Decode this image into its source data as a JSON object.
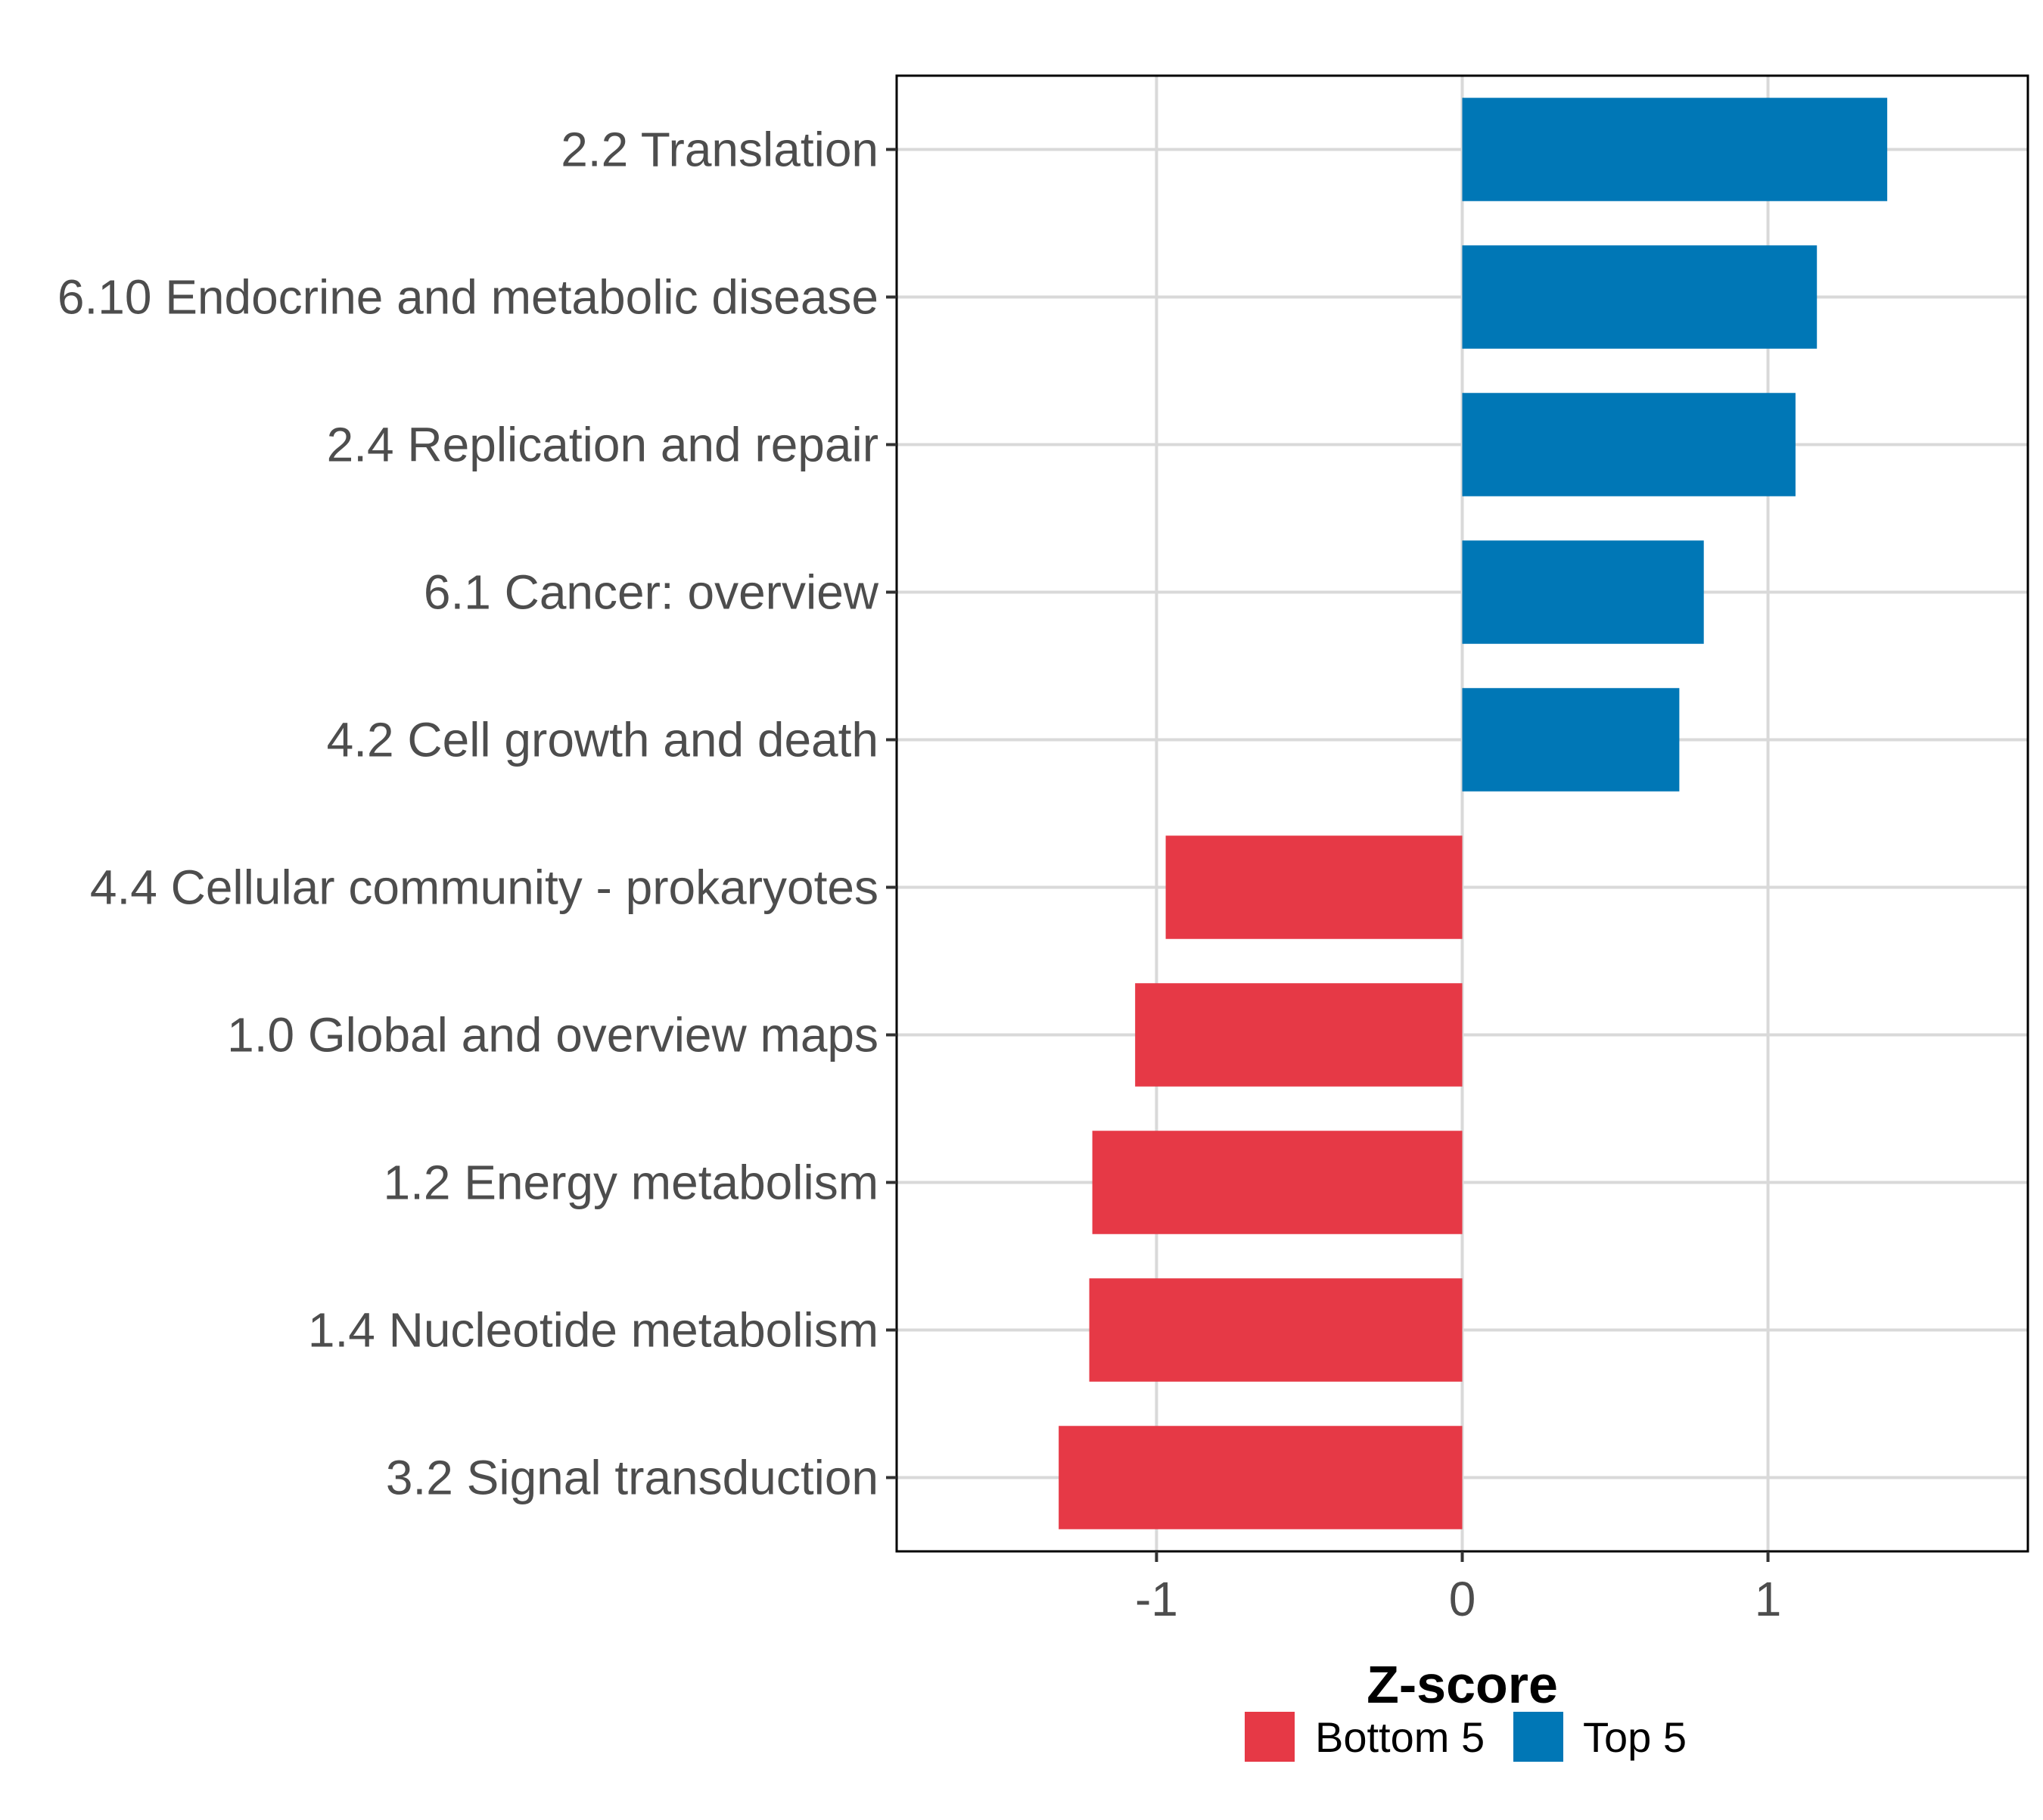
{
  "chart_data": {
    "type": "bar",
    "orientation": "horizontal",
    "title": "",
    "xlabel": "Z-score",
    "ylabel": "",
    "xlim": [
      -1.85,
      1.85
    ],
    "x_ticks": [
      {
        "value": -1,
        "label": "-1"
      },
      {
        "value": 0,
        "label": "0"
      },
      {
        "value": 1,
        "label": "1"
      }
    ],
    "grid": true,
    "legend_position": "bottom",
    "categories": [
      "2.2 Translation",
      "6.10 Endocrine and metabolic disease",
      "2.4 Replication and repair",
      "6.1 Cancer: overview",
      "4.2 Cell growth and death",
      "4.4 Cellular community - prokaryotes",
      "1.0 Global and overview maps",
      "1.2 Energy metabolism",
      "1.4 Nucleotide metabolism",
      "3.2 Signal transduction"
    ],
    "values": [
      1.39,
      1.16,
      1.09,
      0.79,
      0.71,
      -0.97,
      -1.07,
      -1.21,
      -1.22,
      -1.32
    ],
    "groups": [
      "Top 5",
      "Top 5",
      "Top 5",
      "Top 5",
      "Top 5",
      "Bottom 5",
      "Bottom 5",
      "Bottom 5",
      "Bottom 5",
      "Bottom 5"
    ],
    "legend": [
      {
        "name": "Bottom 5",
        "color": "#e63946"
      },
      {
        "name": "Top 5",
        "color": "#0077b6"
      }
    ]
  }
}
